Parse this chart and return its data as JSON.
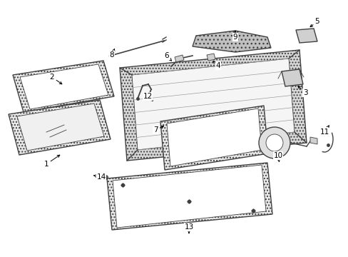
{
  "background_color": "#ffffff",
  "line_color": "#404040",
  "hatch_color": "#888888",
  "label_color": "#000000",
  "label_fontsize": 7.5,
  "lw_main": 1.0,
  "lw_thin": 0.6
}
